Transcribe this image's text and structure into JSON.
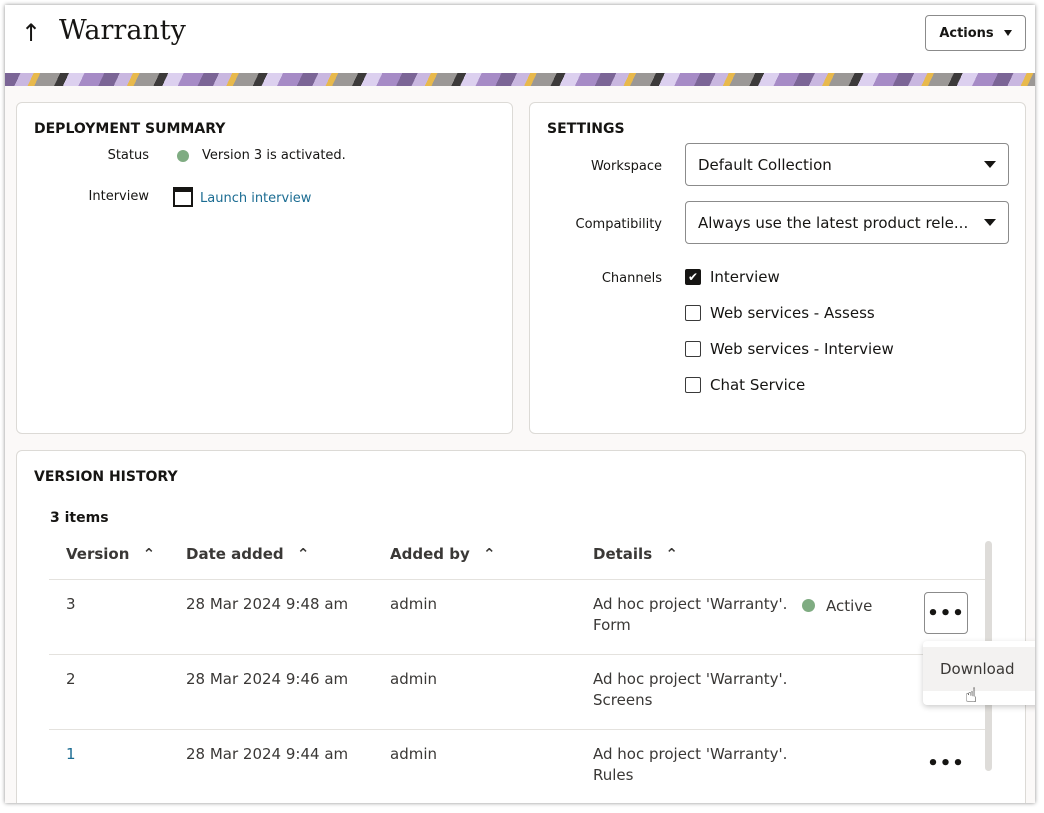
{
  "header": {
    "title": "Warranty",
    "back_icon": "arrow-up-icon",
    "actions_label": "Actions"
  },
  "deployment": {
    "title": "DEPLOYMENT SUMMARY",
    "status_label": "Status",
    "status_text": "Version 3 is activated.",
    "status_color": "#7fac82",
    "interview_label": "Interview",
    "launch_label": "Launch interview",
    "link_color": "#1b6c92"
  },
  "settings": {
    "title": "SETTINGS",
    "workspace_label": "Workspace",
    "workspace_value": "Default Collection",
    "compat_label": "Compatibility",
    "compat_value": "Always use the latest product rele...",
    "channels_label": "Channels",
    "channels": [
      {
        "label": "Interview",
        "checked": true
      },
      {
        "label": "Web services - Assess",
        "checked": false
      },
      {
        "label": "Web services - Interview",
        "checked": false
      },
      {
        "label": "Chat Service",
        "checked": false
      }
    ]
  },
  "history": {
    "title": "VERSION HISTORY",
    "count": "3 items",
    "columns": [
      "Version",
      "Date added",
      "Added by",
      "Details"
    ],
    "rows": [
      {
        "version": "3",
        "date": "28 Mar 2024 9:48 am",
        "by": "admin",
        "details1": "Ad hoc project 'Warranty'.",
        "details2": "Form",
        "status": "Active"
      },
      {
        "version": "2",
        "date": "28 Mar 2024 9:46 am",
        "by": "admin",
        "details1": "Ad hoc project 'Warranty'.",
        "details2": "Screens",
        "status": ""
      },
      {
        "version": "1",
        "date": "28 Mar 2024 9:44 am",
        "by": "admin",
        "details1": "Ad hoc project 'Warranty'.",
        "details2": "Rules",
        "status": ""
      }
    ],
    "menu": {
      "download_label": "Download"
    }
  }
}
